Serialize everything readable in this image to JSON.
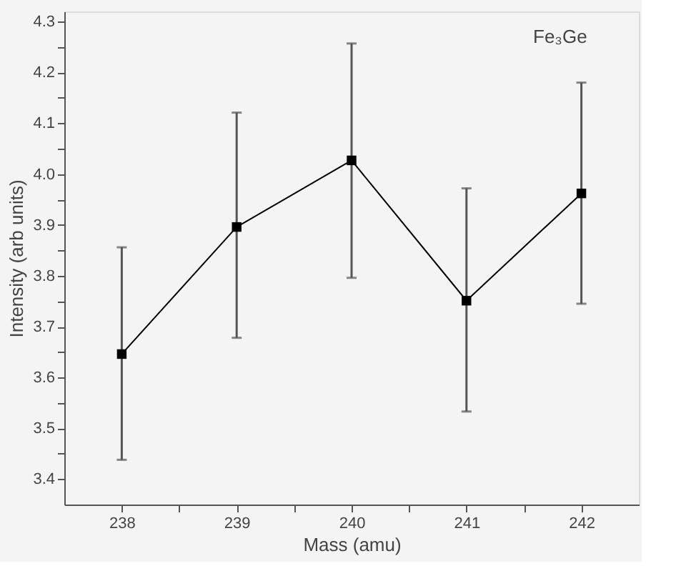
{
  "chart_data": {
    "type": "line",
    "xlabel": "Mass (amu)",
    "ylabel": "Intensity (arb units)",
    "annotations": [
      "Fe₃Ge"
    ],
    "x": [
      238,
      239,
      240,
      241,
      242
    ],
    "series": [
      {
        "color": "#000000",
        "values": [
          3.646,
          3.896,
          4.027,
          3.751,
          3.962
        ],
        "errors": [
          [
            3.438,
            3.856
          ],
          [
            3.678,
            4.121
          ],
          [
            3.796,
            4.257
          ],
          [
            3.533,
            3.972
          ],
          [
            3.745,
            4.18
          ]
        ]
      }
    ],
    "xlim": [
      237.5,
      242.5
    ],
    "xticks": [
      238,
      {
        "value": 238.5,
        "label": null
      },
      239,
      {
        "value": 239.5,
        "label": null
      },
      240,
      {
        "value": 240.5,
        "label": null
      },
      241,
      {
        "value": 241.5,
        "label": null
      },
      242
    ],
    "ylim": [
      3.35,
      4.32
    ],
    "yticks": [
      {
        "value": 3.4,
        "label": "3.4"
      },
      {
        "value": 3.45,
        "label": null
      },
      {
        "value": 3.5,
        "label": "3.5"
      },
      {
        "value": 3.55,
        "label": null
      },
      {
        "value": 3.6,
        "label": "3.6"
      },
      {
        "value": 3.65,
        "label": null
      },
      {
        "value": 3.7,
        "label": "3.7"
      },
      {
        "value": 3.75,
        "label": null
      },
      {
        "value": 3.8,
        "label": "3.8"
      },
      {
        "value": 3.85,
        "label": null
      },
      {
        "value": 3.9,
        "label": "3.9"
      },
      {
        "value": 3.95,
        "label": null
      },
      {
        "value": 4.0,
        "label": "4.0"
      },
      {
        "value": 4.05,
        "label": null
      },
      {
        "value": 4.1,
        "label": "4.1"
      },
      {
        "value": 4.15,
        "label": null
      },
      {
        "value": 4.2,
        "label": "4.2"
      },
      {
        "value": 4.25,
        "label": null
      },
      {
        "value": 4.3,
        "label": "4.3"
      }
    ],
    "grid": false,
    "marker": "square",
    "line_style": "solid"
  }
}
